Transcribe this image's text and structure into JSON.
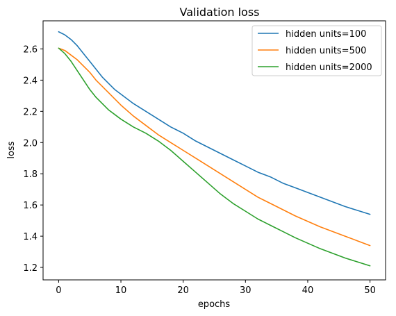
{
  "chart_data": {
    "type": "line",
    "title": "Validation loss",
    "xlabel": "epochs",
    "ylabel": "loss",
    "xlim": [
      -2.5,
      52.5
    ],
    "ylim": [
      1.12,
      2.78
    ],
    "xticks": [
      0,
      10,
      20,
      30,
      40,
      50
    ],
    "yticks": [
      1.2,
      1.4,
      1.6,
      1.8,
      2.0,
      2.2,
      2.4,
      2.6
    ],
    "ytick_labels": [
      "1.2",
      "1.4",
      "1.6",
      "1.8",
      "2.0",
      "2.2",
      "2.4",
      "2.6"
    ],
    "grid": false,
    "legend_position": "top-right",
    "x": [
      0,
      1,
      2,
      3,
      4,
      5,
      6,
      7,
      8,
      9,
      10,
      12,
      14,
      16,
      18,
      20,
      22,
      24,
      26,
      28,
      30,
      32,
      34,
      36,
      38,
      40,
      42,
      44,
      46,
      48,
      50
    ],
    "series": [
      {
        "name": "hidden units=100",
        "color": "#1f77b4",
        "values": [
          2.71,
          2.69,
          2.66,
          2.62,
          2.57,
          2.52,
          2.47,
          2.42,
          2.38,
          2.34,
          2.31,
          2.25,
          2.2,
          2.15,
          2.1,
          2.06,
          2.01,
          1.97,
          1.93,
          1.89,
          1.85,
          1.81,
          1.78,
          1.74,
          1.71,
          1.68,
          1.65,
          1.62,
          1.59,
          1.565,
          1.54
        ]
      },
      {
        "name": "hidden units=500",
        "color": "#ff7f0e",
        "values": [
          2.605,
          2.59,
          2.56,
          2.53,
          2.49,
          2.45,
          2.4,
          2.36,
          2.32,
          2.28,
          2.24,
          2.17,
          2.11,
          2.05,
          2.0,
          1.95,
          1.9,
          1.85,
          1.8,
          1.75,
          1.7,
          1.65,
          1.61,
          1.57,
          1.53,
          1.495,
          1.46,
          1.43,
          1.4,
          1.37,
          1.34
        ]
      },
      {
        "name": "hidden units=2000",
        "color": "#2ca02c",
        "values": [
          2.605,
          2.57,
          2.52,
          2.46,
          2.4,
          2.34,
          2.29,
          2.25,
          2.21,
          2.18,
          2.15,
          2.1,
          2.06,
          2.01,
          1.95,
          1.88,
          1.81,
          1.74,
          1.67,
          1.61,
          1.56,
          1.51,
          1.47,
          1.43,
          1.39,
          1.355,
          1.32,
          1.29,
          1.26,
          1.235,
          1.21
        ]
      }
    ]
  }
}
